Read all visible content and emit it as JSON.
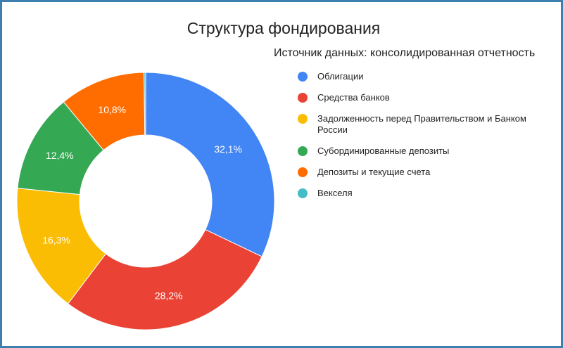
{
  "chart_data": {
    "type": "pie",
    "donut": true,
    "title": "Структура фондирования",
    "subtitle": "Источник данных: консолидированная отчетность",
    "legend_position": "right",
    "slices": [
      {
        "label": "Облигации",
        "value": 32.1,
        "display": "32,1%",
        "color": "#4285f4"
      },
      {
        "label": "Средства банков",
        "value": 28.2,
        "display": "28,2%",
        "color": "#ea4335"
      },
      {
        "label": "Задолженность перед Правительством и Банком России",
        "value": 16.3,
        "display": "16,3%",
        "color": "#fbbc04"
      },
      {
        "label": "Субординированные депозиты",
        "value": 12.4,
        "display": "12,4%",
        "color": "#34a853"
      },
      {
        "label": "Депозиты и текущие счета",
        "value": 10.8,
        "display": "10,8%",
        "color": "#ff6d01"
      },
      {
        "label": "Векселя",
        "value": 0.2,
        "display": "",
        "color": "#46bdc6"
      }
    ]
  }
}
